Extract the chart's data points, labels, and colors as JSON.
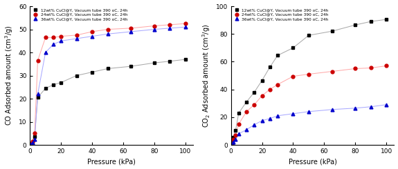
{
  "co_pressure": [
    0.5,
    1.5,
    3,
    5,
    10,
    15,
    20,
    30,
    40,
    50,
    65,
    80,
    90,
    100
  ],
  "co_12wt": [
    0.3,
    1.0,
    3.5,
    20.5,
    24.5,
    26.0,
    27.0,
    30.0,
    31.5,
    33.0,
    34.0,
    35.5,
    36.2,
    37.0
  ],
  "co_24wt": [
    0.3,
    1.5,
    5.0,
    36.5,
    46.5,
    46.5,
    47.0,
    47.5,
    49.0,
    50.0,
    50.5,
    51.5,
    52.0,
    52.5
  ],
  "co_36wt": [
    0.3,
    0.8,
    2.5,
    22.0,
    40.0,
    43.5,
    45.0,
    46.0,
    47.0,
    48.0,
    49.0,
    50.0,
    50.5,
    51.0
  ],
  "co2_pressure": [
    0.5,
    1.5,
    3,
    5,
    10,
    15,
    20,
    25,
    30,
    40,
    50,
    65,
    80,
    90,
    100
  ],
  "co2_12wt": [
    1.5,
    5.5,
    10.5,
    23.0,
    31.0,
    38.0,
    46.5,
    56.0,
    64.5,
    70.0,
    79.0,
    82.0,
    86.5,
    89.0,
    90.5
  ],
  "co2_24wt": [
    1.0,
    4.0,
    7.0,
    15.0,
    24.0,
    29.0,
    35.5,
    40.0,
    43.5,
    49.5,
    51.0,
    53.0,
    55.0,
    55.5,
    57.0
  ],
  "co2_36wt": [
    0.5,
    2.0,
    4.0,
    8.0,
    11.0,
    14.5,
    17.5,
    19.0,
    21.0,
    22.5,
    24.0,
    25.5,
    26.5,
    27.5,
    29.0
  ],
  "marker_color_12": "#000000",
  "marker_color_24": "#cc0000",
  "marker_color_36": "#0000cc",
  "line_color_12": "#aaaaaa",
  "line_color_24": "#ffaaaa",
  "line_color_36": "#aaaaff",
  "legend_12": "12wt% CuCl@Y, Vacuum tube 390 oC, 24h",
  "legend_24": "24wt% CuCl@Y, Vacuum tube 390 oC, 24h",
  "legend_36": "36wt% CuCl@Y, Vacuum tube 390 oC, 24h",
  "co_ylabel": "CO Adsorbed amount (cm$^3$/g)",
  "co2_ylabel": "CO$_2$ Adsorbed amount (cm$^3$/g)",
  "xlabel": "Pressure (kPa)",
  "co_ylim": [
    0,
    60
  ],
  "co2_ylim": [
    0,
    100
  ],
  "xlim": [
    0,
    105
  ],
  "co_yticks": [
    0,
    10,
    20,
    30,
    40,
    50,
    60
  ],
  "co2_yticks": [
    0,
    20,
    40,
    60,
    80,
    100
  ],
  "xticks": [
    0,
    20,
    40,
    60,
    80,
    100
  ]
}
